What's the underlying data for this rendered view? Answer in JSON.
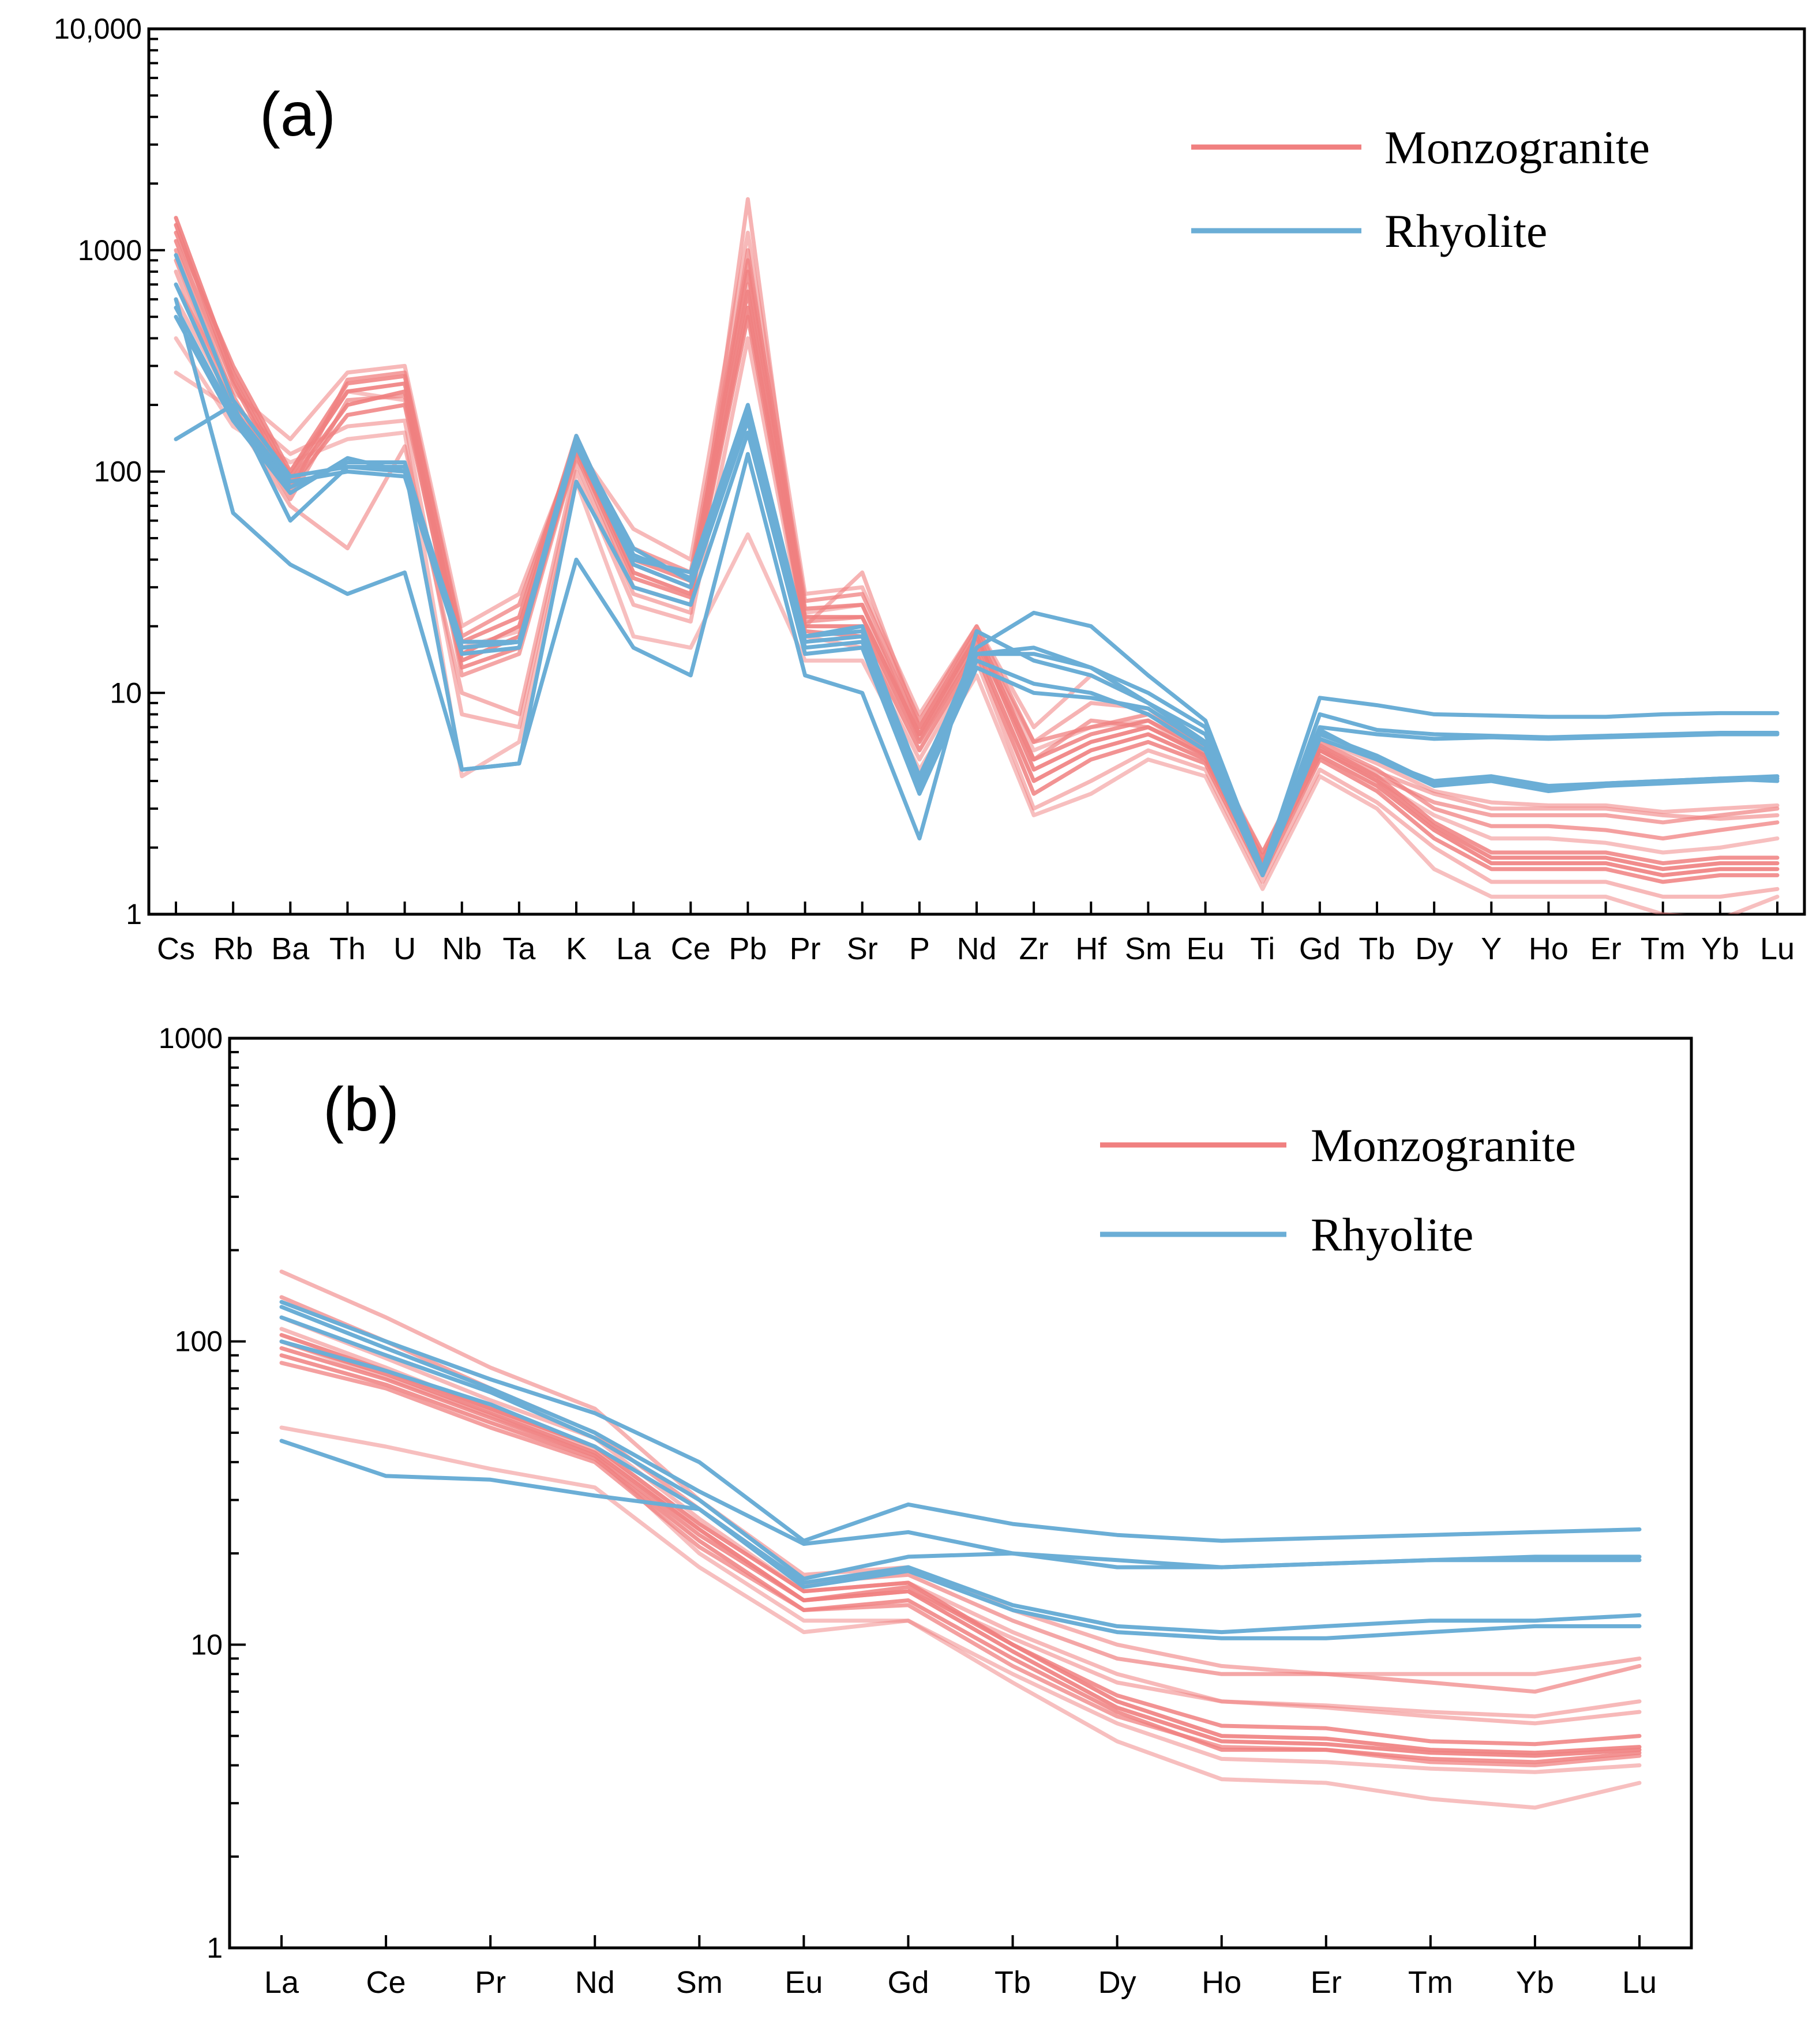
{
  "chart_data": [
    {
      "type": "line",
      "panel_label": "(a)",
      "yscale": "log",
      "ylim": [
        1,
        10000
      ],
      "yticks": [
        "1",
        "10",
        "100",
        "1000",
        "10,000"
      ],
      "categories": [
        "Cs",
        "Rb",
        "Ba",
        "Th",
        "U",
        "Nb",
        "Ta",
        "K",
        "La",
        "Ce",
        "Pb",
        "Pr",
        "Sr",
        "P",
        "Nd",
        "Zr",
        "Hf",
        "Sm",
        "Eu",
        "Ti",
        "Gd",
        "Tb",
        "Dy",
        "Y",
        "Ho",
        "Er",
        "Tm",
        "Yb",
        "Lu"
      ],
      "legend": [
        {
          "label": "Monzogranite",
          "color": "#f08080"
        },
        {
          "label": "Rhyolite",
          "color": "#6baed6"
        }
      ],
      "legend_position": "top-right",
      "series": [
        {
          "name": "Monzogranite",
          "color": "#f08080",
          "opacity": 0.9,
          "values": [
            1400,
            280,
            95,
            230,
            250,
            15,
            20,
            140,
            38,
            30,
            650,
            22,
            22,
            6.5,
            18,
            4.5,
            6,
            7,
            5.2,
            1.7,
            5.5,
            4,
            2.5,
            1.8,
            1.8,
            1.8,
            1.6,
            1.7,
            1.7
          ]
        },
        {
          "name": "Monzogranite",
          "color": "#f08080",
          "opacity": 0.9,
          "values": [
            1300,
            260,
            90,
            200,
            230,
            14,
            18,
            130,
            35,
            28,
            550,
            20,
            20,
            6,
            16,
            4,
            5.5,
            6.5,
            5,
            1.6,
            5.2,
            3.8,
            2.4,
            1.7,
            1.7,
            1.7,
            1.5,
            1.6,
            1.6
          ]
        },
        {
          "name": "Monzogranite",
          "color": "#f08080",
          "opacity": 0.85,
          "values": [
            1200,
            300,
            100,
            250,
            270,
            17,
            22,
            145,
            40,
            32,
            800,
            24,
            25,
            7,
            19,
            5,
            6.5,
            7.5,
            5.5,
            1.8,
            5.8,
            4.2,
            2.6,
            1.9,
            1.9,
            1.9,
            1.7,
            1.8,
            1.8
          ]
        },
        {
          "name": "Monzogranite",
          "color": "#f08080",
          "opacity": 0.85,
          "values": [
            1100,
            250,
            85,
            180,
            200,
            13,
            16,
            125,
            33,
            27,
            500,
            19,
            18,
            5.5,
            15,
            3.5,
            5,
            6,
            4.8,
            1.5,
            5,
            3.6,
            2.2,
            1.6,
            1.6,
            1.6,
            1.4,
            1.5,
            1.5
          ]
        },
        {
          "name": "Monzogranite",
          "color": "#f08080",
          "opacity": 0.75,
          "values": [
            1000,
            220,
            80,
            260,
            280,
            18,
            25,
            135,
            45,
            35,
            900,
            26,
            28,
            7.5,
            20,
            6,
            7,
            8,
            5.7,
            1.9,
            6,
            4.5,
            3,
            2.5,
            2.5,
            2.4,
            2.2,
            2.4,
            2.6
          ]
        },
        {
          "name": "Monzogranite",
          "color": "#f08080",
          "opacity": 0.7,
          "values": [
            900,
            200,
            75,
            210,
            220,
            12,
            15,
            120,
            30,
            25,
            1000,
            21,
            22,
            6.5,
            17,
            5,
            7.5,
            7,
            5.3,
            1.7,
            5.5,
            4.2,
            3.2,
            2.8,
            2.8,
            2.8,
            2.6,
            2.8,
            3
          ]
        },
        {
          "name": "Monzogranite",
          "color": "#f08080",
          "opacity": 0.6,
          "values": [
            800,
            180,
            70,
            45,
            130,
            10,
            8,
            110,
            28,
            23,
            1700,
            20,
            35,
            7,
            18,
            6,
            9,
            8.5,
            5.5,
            1.8,
            5.7,
            4.4,
            3.5,
            3,
            3,
            3,
            2.8,
            2.7,
            2.8
          ]
        },
        {
          "name": "Monzogranite",
          "color": "#f08080",
          "opacity": 0.55,
          "values": [
            700,
            230,
            140,
            280,
            300,
            20,
            28,
            130,
            55,
            40,
            1200,
            28,
            30,
            8,
            20,
            7,
            12,
            9,
            6,
            1.9,
            6.2,
            4.8,
            3.6,
            3.2,
            3.1,
            3.1,
            2.9,
            3,
            3.1
          ]
        },
        {
          "name": "Monzogranite",
          "color": "#f08080",
          "opacity": 0.55,
          "values": [
            600,
            200,
            120,
            160,
            170,
            8,
            7,
            100,
            25,
            21,
            400,
            18,
            16,
            5,
            14,
            3,
            4,
            5.5,
            4.5,
            1.4,
            4.5,
            3.2,
            2,
            1.4,
            1.4,
            1.4,
            1.2,
            1.2,
            1.3
          ]
        },
        {
          "name": "Monzogranite",
          "color": "#f08080",
          "opacity": 0.5,
          "values": [
            400,
            160,
            110,
            140,
            150,
            4.2,
            6,
            90,
            18,
            16,
            52,
            14,
            14,
            4.5,
            12,
            2.8,
            3.5,
            5,
            4.2,
            1.3,
            4.2,
            3,
            1.6,
            1.2,
            1.2,
            1.2,
            1,
            0.95,
            1.2
          ]
        },
        {
          "name": "Monzogranite",
          "color": "#f08080",
          "opacity": 0.5,
          "values": [
            280,
            190,
            100,
            230,
            210,
            16,
            19,
            115,
            42,
            33,
            700,
            23,
            25,
            6.2,
            17,
            5.5,
            7,
            7.5,
            5.2,
            1.7,
            5.6,
            4,
            2.8,
            2.2,
            2.2,
            2.1,
            1.9,
            2,
            2.2
          ]
        },
        {
          "name": "Rhyolite",
          "color": "#6baed6",
          "opacity": 1,
          "values": [
            950,
            210,
            95,
            105,
            100,
            16,
            17,
            145,
            40,
            35,
            200,
            18,
            20,
            4,
            16,
            23,
            20,
            12,
            7.5,
            1.6,
            9.5,
            8.8,
            8,
            7.9,
            7.8,
            7.8,
            8,
            8.1,
            8.1
          ]
        },
        {
          "name": "Rhyolite",
          "color": "#6baed6",
          "opacity": 1,
          "values": [
            700,
            190,
            90,
            100,
            95,
            15,
            16,
            135,
            45,
            32,
            180,
            17,
            18,
            3.7,
            15,
            16,
            13,
            10,
            7,
            1.5,
            8,
            6.8,
            6.5,
            6.4,
            6.3,
            6.4,
            6.5,
            6.6,
            6.6
          ]
        },
        {
          "name": "Rhyolite",
          "color": "#6baed6",
          "opacity": 1,
          "values": [
            550,
            180,
            85,
            110,
            110,
            16,
            17,
            140,
            42,
            33,
            190,
            18,
            19,
            4.2,
            15,
            15,
            13,
            9,
            6.5,
            1.6,
            7,
            6.5,
            6.2,
            6.3,
            6.2,
            6.3,
            6.4,
            6.5,
            6.5
          ]
        },
        {
          "name": "Rhyolite",
          "color": "#6baed6",
          "opacity": 1,
          "values": [
            500,
            170,
            80,
            115,
            100,
            17,
            17,
            130,
            38,
            30,
            170,
            16,
            17,
            4,
            14,
            11,
            10,
            8,
            5.5,
            1.5,
            6.2,
            5,
            3.8,
            4,
            3.6,
            3.8,
            3.9,
            4,
            4.1
          ]
        },
        {
          "name": "Rhyolite",
          "color": "#6baed6",
          "opacity": 1,
          "values": [
            140,
            200,
            60,
            105,
            105,
            4.5,
            4.8,
            90,
            30,
            25,
            150,
            15,
            16,
            3.5,
            13,
            10,
            9.5,
            8.5,
            5.8,
            1.5,
            6.5,
            5.2,
            3.9,
            4.1,
            3.7,
            3.9,
            4,
            4.1,
            4
          ]
        },
        {
          "name": "Rhyolite",
          "color": "#6baed6",
          "opacity": 1,
          "values": [
            600,
            65,
            38,
            28,
            35,
            4.5,
            4.8,
            40,
            16,
            12,
            120,
            12,
            10,
            2.2,
            19,
            14,
            12,
            9,
            6,
            1.6,
            6.8,
            5,
            4,
            4.2,
            3.8,
            3.9,
            4,
            4.1,
            4.2
          ]
        }
      ]
    },
    {
      "type": "line",
      "panel_label": "(b)",
      "yscale": "log",
      "ylim": [
        1,
        1000
      ],
      "yticks": [
        "1",
        "10",
        "100",
        "1000"
      ],
      "categories": [
        "La",
        "Ce",
        "Pr",
        "Nd",
        "Sm",
        "Eu",
        "Gd",
        "Tb",
        "Dy",
        "Ho",
        "Er",
        "Tm",
        "Yb",
        "Lu"
      ],
      "legend": [
        {
          "label": "Monzogranite",
          "color": "#f08080"
        },
        {
          "label": "Rhyolite",
          "color": "#6baed6"
        }
      ],
      "legend_position": "top-right",
      "series": [
        {
          "name": "Monzogranite",
          "color": "#f08080",
          "opacity": 0.9,
          "values": [
            105,
            80,
            60,
            45,
            25,
            15,
            16,
            10,
            6.5,
            5,
            4.9,
            4.5,
            4.4,
            4.6
          ]
        },
        {
          "name": "Monzogranite",
          "color": "#f08080",
          "opacity": 0.9,
          "values": [
            100,
            78,
            58,
            43,
            24,
            14,
            15,
            9.5,
            6.2,
            4.8,
            4.7,
            4.4,
            4.3,
            4.5
          ]
        },
        {
          "name": "Monzogranite",
          "color": "#f08080",
          "opacity": 0.85,
          "values": [
            95,
            75,
            56,
            42,
            23,
            14,
            15.5,
            10,
            6.8,
            5.4,
            5.3,
            4.8,
            4.7,
            5
          ]
        },
        {
          "name": "Monzogranite",
          "color": "#f08080",
          "opacity": 0.85,
          "values": [
            90,
            72,
            54,
            41,
            22,
            13,
            14,
            9,
            6,
            4.5,
            4.5,
            4.2,
            4.1,
            4.4
          ]
        },
        {
          "name": "Monzogranite",
          "color": "#f08080",
          "opacity": 0.75,
          "values": [
            85,
            70,
            52,
            40,
            21,
            13,
            13.5,
            8.5,
            5.8,
            4.6,
            4.5,
            4.1,
            4,
            4.3
          ]
        },
        {
          "name": "Monzogranite",
          "color": "#f08080",
          "opacity": 0.7,
          "values": [
            140,
            100,
            70,
            50,
            28,
            16,
            17,
            12,
            9,
            8,
            8,
            7.5,
            7,
            8.5
          ]
        },
        {
          "name": "Monzogranite",
          "color": "#f08080",
          "opacity": 0.6,
          "values": [
            170,
            120,
            82,
            60,
            30,
            17,
            18,
            13,
            10,
            8.5,
            8,
            8,
            8,
            9
          ]
        },
        {
          "name": "Monzogranite",
          "color": "#f08080",
          "opacity": 0.55,
          "values": [
            120,
            88,
            64,
            48,
            26,
            15,
            16,
            11,
            8,
            6.5,
            6.3,
            6,
            5.8,
            6.5
          ]
        },
        {
          "name": "Monzogranite",
          "color": "#f08080",
          "opacity": 0.5,
          "values": [
            52,
            45,
            38,
            33,
            18,
            11,
            12,
            8,
            5.5,
            4.2,
            4.1,
            3.9,
            3.8,
            4
          ]
        },
        {
          "name": "Monzogranite",
          "color": "#f08080",
          "opacity": 0.5,
          "values": [
            100,
            76,
            57,
            42,
            20,
            12,
            12,
            7.5,
            4.8,
            3.6,
            3.5,
            3.1,
            2.9,
            3.5
          ]
        },
        {
          "name": "Monzogranite",
          "color": "#f08080",
          "opacity": 0.55,
          "values": [
            110,
            82,
            60,
            44,
            24,
            14,
            15,
            10.5,
            7.5,
            6.5,
            6.2,
            5.8,
            5.5,
            6
          ]
        },
        {
          "name": "Rhyolite",
          "color": "#6baed6",
          "opacity": 1,
          "values": [
            135,
            100,
            75,
            58,
            40,
            22,
            29,
            25,
            23,
            22,
            22.5,
            23,
            23.5,
            24
          ]
        },
        {
          "name": "Rhyolite",
          "color": "#6baed6",
          "opacity": 1,
          "values": [
            130,
            95,
            70,
            50,
            32,
            21.5,
            23.5,
            20,
            18,
            18,
            18.5,
            19,
            19.5,
            19.5
          ]
        },
        {
          "name": "Rhyolite",
          "color": "#6baed6",
          "opacity": 1,
          "values": [
            120,
            90,
            68,
            48,
            30,
            16.5,
            19.5,
            20,
            19,
            18,
            18.5,
            19,
            19,
            19
          ]
        },
        {
          "name": "Rhyolite",
          "color": "#6baed6",
          "opacity": 1,
          "values": [
            100,
            80,
            62,
            45,
            28,
            16,
            18,
            13.5,
            11.5,
            11,
            11.5,
            12,
            12,
            12.5
          ]
        },
        {
          "name": "Rhyolite",
          "color": "#6baed6",
          "opacity": 1,
          "values": [
            47,
            36,
            35,
            31,
            28,
            15.5,
            17.5,
            13,
            11,
            10.5,
            10.5,
            11,
            11.5,
            11.5
          ]
        }
      ]
    }
  ]
}
